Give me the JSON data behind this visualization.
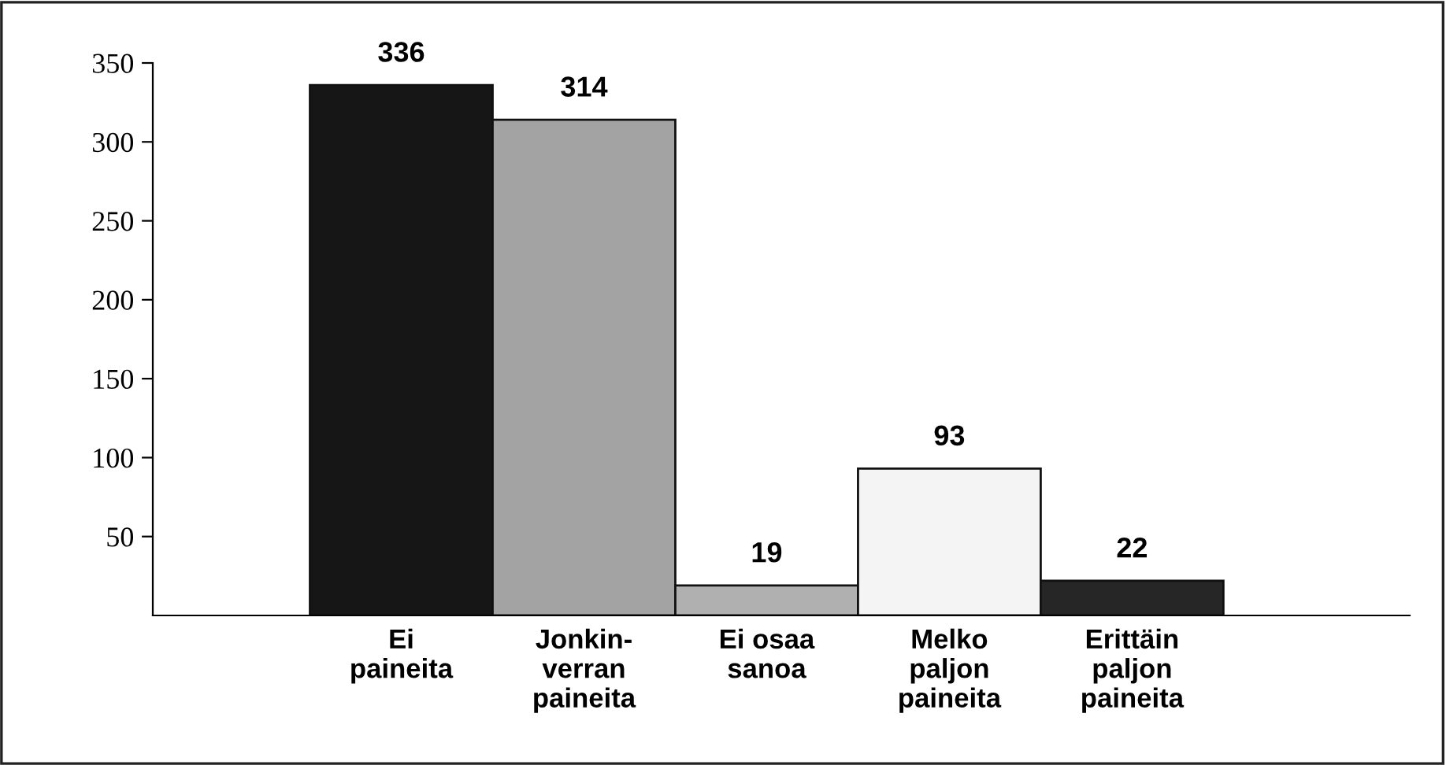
{
  "chart_data": {
    "type": "bar",
    "categories": [
      "Ei\npaineita",
      "Jonkin-\nverran\npaineita",
      "Ei osaa\nsanoa",
      "Melko\npaljon\npaineita",
      "Erittäin\npaljon\npaineita"
    ],
    "values": [
      336,
      314,
      19,
      93,
      22
    ],
    "colors": [
      "#161616",
      "#a3a3a3",
      "#b0b0b0",
      "#f4f4f4",
      "#262626"
    ],
    "ylim": [
      0,
      350
    ],
    "yticks": [
      50,
      100,
      150,
      200,
      250,
      300,
      350
    ],
    "data_labels": true,
    "grid": false,
    "legend": false
  }
}
